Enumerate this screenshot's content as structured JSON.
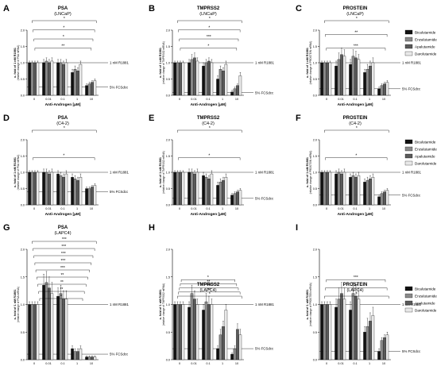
{
  "legend": {
    "entries": [
      {
        "name": "Bicalutamide",
        "color": "#111111"
      },
      {
        "name": "Enzalutamide",
        "color": "#8a8a8a"
      },
      {
        "name": "Apalutamide",
        "color": "#5a5a5a"
      },
      {
        "name": "Darolutamide",
        "color": "#e8e8e8"
      }
    ]
  },
  "chart_data": [
    {
      "letter": "A",
      "type": "bar",
      "title": "PSA",
      "subtitle": "(LNCaP)",
      "xlabel": "Anti-Androgen [µM]",
      "ylabel": "x- fold of 1 nM R1881",
      "ylabel2": "(relative change of PSA mRNA)",
      "categories": [
        "0",
        "0.01",
        "0.1",
        "1",
        "10"
      ],
      "ylim": [
        0,
        2.0
      ],
      "yticks": [
        "0.0",
        "0.5",
        "1.0",
        "1.5",
        "2.0"
      ],
      "ref_lines": [
        {
          "y": 1.0,
          "label": "1 nM R1881"
        },
        {
          "y": 0.25,
          "label": "5% FCSdcc"
        }
      ],
      "series": [
        {
          "name": "Bicalutamide",
          "values": [
            1.0,
            1.0,
            1.0,
            0.7,
            0.3
          ],
          "err": [
            0.05,
            0.1,
            0.1,
            0.1,
            0.05
          ]
        },
        {
          "name": "Enzalutamide",
          "values": [
            1.0,
            1.05,
            1.0,
            0.8,
            0.35
          ],
          "err": [
            0.05,
            0.1,
            0.1,
            0.1,
            0.05
          ]
        },
        {
          "name": "Apalutamide",
          "values": [
            1.0,
            1.0,
            0.95,
            0.75,
            0.4
          ],
          "err": [
            0.05,
            0.1,
            0.1,
            0.1,
            0.05
          ]
        },
        {
          "name": "Darolutamide",
          "values": [
            1.0,
            1.05,
            1.0,
            0.95,
            0.45
          ],
          "err": [
            0.05,
            0.1,
            0.1,
            0.1,
            0.05
          ]
        }
      ],
      "brackets": [
        "*",
        "*",
        "*",
        "**"
      ]
    },
    {
      "letter": "B",
      "type": "bar",
      "title": "TMPRSS2",
      "subtitle": "(LNCaP)",
      "xlabel": "Anti-Androgen [µM]",
      "ylabel": "x- fold of 1 nM R1881",
      "ylabel2": "(relative change of TMPRSS2 mRNA)",
      "categories": [
        "0",
        "0.01",
        "0.1",
        "1",
        "10"
      ],
      "ylim": [
        0,
        2.0
      ],
      "yticks": [
        "0.0",
        "0.5",
        "1.0",
        "1.5",
        "2.0"
      ],
      "ref_lines": [
        {
          "y": 1.0,
          "label": "1 nM R1881"
        },
        {
          "y": 0.08,
          "label": "5% FCSdcc"
        }
      ],
      "series": [
        {
          "name": "Bicalutamide",
          "values": [
            1.0,
            1.0,
            0.9,
            0.5,
            0.1
          ],
          "err": [
            0.05,
            0.1,
            0.1,
            0.1,
            0.05
          ]
        },
        {
          "name": "Enzalutamide",
          "values": [
            1.0,
            1.1,
            1.0,
            0.8,
            0.2
          ],
          "err": [
            0.05,
            0.15,
            0.1,
            0.1,
            0.05
          ]
        },
        {
          "name": "Apalutamide",
          "values": [
            1.0,
            1.15,
            1.05,
            0.75,
            0.3
          ],
          "err": [
            0.05,
            0.15,
            0.1,
            0.1,
            0.05
          ]
        },
        {
          "name": "Darolutamide",
          "values": [
            1.0,
            1.05,
            1.0,
            0.95,
            0.6
          ],
          "err": [
            0.05,
            0.1,
            0.1,
            0.1,
            0.1
          ]
        }
      ],
      "brackets": [
        "*",
        "*",
        "***",
        "*"
      ]
    },
    {
      "letter": "C",
      "type": "bar",
      "title": "PROSTEIN",
      "subtitle": "(LNCaP)",
      "xlabel": "Anti-Androgen [µM]",
      "ylabel": "x- fold of 1 nM R1881",
      "ylabel2": "(relative change of PROSTEIN mRNA)",
      "categories": [
        "0",
        "0.01",
        "0.1",
        "1",
        "10"
      ],
      "ylim": [
        0,
        2.0
      ],
      "yticks": [
        "0.0",
        "0.5",
        "1.0",
        "1.5",
        "2.0"
      ],
      "ref_lines": [
        {
          "y": 1.0,
          "label": "1 nM R1881"
        },
        {
          "y": 0.2,
          "label": "5% FCSdcc"
        }
      ],
      "series": [
        {
          "name": "Bicalutamide",
          "values": [
            1.0,
            0.9,
            0.95,
            0.7,
            0.2
          ],
          "err": [
            0.05,
            0.15,
            0.15,
            0.1,
            0.05
          ]
        },
        {
          "name": "Enzalutamide",
          "values": [
            1.0,
            1.1,
            1.2,
            0.8,
            0.3
          ],
          "err": [
            0.05,
            0.2,
            0.2,
            0.15,
            0.05
          ]
        },
        {
          "name": "Apalutamide",
          "values": [
            1.0,
            1.25,
            1.15,
            0.9,
            0.35
          ],
          "err": [
            0.05,
            0.2,
            0.2,
            0.15,
            0.05
          ]
        },
        {
          "name": "Darolutamide",
          "values": [
            1.0,
            1.2,
            1.1,
            1.0,
            0.4
          ],
          "err": [
            0.05,
            0.2,
            0.15,
            0.15,
            0.05
          ]
        }
      ],
      "brackets": [
        "*",
        "**",
        "***"
      ]
    },
    {
      "letter": "D",
      "type": "bar",
      "title": "PSA",
      "subtitle": "(C4-2)",
      "xlabel": "Anti-Androgen [µM]",
      "ylabel": "x- fold of 1 nM R1881",
      "ylabel2": "(relative change of PSA mRNA)",
      "categories": [
        "0",
        "0.01",
        "0.1",
        "1",
        "10"
      ],
      "ylim": [
        0,
        2.0
      ],
      "yticks": [
        "0.0",
        "0.5",
        "1.0",
        "1.5",
        "2.0"
      ],
      "ref_lines": [
        {
          "y": 1.0,
          "label": "1 nM R1881"
        },
        {
          "y": 0.4,
          "label": "5% FCSdcc"
        }
      ],
      "series": [
        {
          "name": "Bicalutamide",
          "values": [
            1.0,
            1.0,
            0.95,
            0.85,
            0.5
          ],
          "err": [
            0.05,
            0.1,
            0.1,
            0.1,
            0.05
          ]
        },
        {
          "name": "Enzalutamide",
          "values": [
            1.0,
            1.0,
            0.9,
            0.8,
            0.5
          ],
          "err": [
            0.05,
            0.1,
            0.1,
            0.1,
            0.05
          ]
        },
        {
          "name": "Apalutamide",
          "values": [
            1.0,
            0.95,
            0.85,
            0.75,
            0.55
          ],
          "err": [
            0.05,
            0.1,
            0.1,
            0.1,
            0.05
          ]
        },
        {
          "name": "Darolutamide",
          "values": [
            1.0,
            1.0,
            0.95,
            0.85,
            0.6
          ],
          "err": [
            0.05,
            0.1,
            0.1,
            0.1,
            0.05
          ]
        }
      ],
      "brackets": [
        "*",
        "*"
      ]
    },
    {
      "letter": "E",
      "type": "bar",
      "title": "TMPRSS2",
      "subtitle": "(C4-2)",
      "xlabel": "Anti-Androgen [µM]",
      "ylabel": "x- fold of 1 nM R1881",
      "ylabel2": "(relative change of TMPRSS2 mRNA)",
      "categories": [
        "0",
        "0.01",
        "0.1",
        "1",
        "10"
      ],
      "ylim": [
        0,
        2.0
      ],
      "yticks": [
        "0.0",
        "0.5",
        "1.0",
        "1.5",
        "2.0"
      ],
      "ref_lines": [
        {
          "y": 1.0,
          "label": "1 nM R1881"
        },
        {
          "y": 0.2,
          "label": "5% FCSdcc"
        }
      ],
      "series": [
        {
          "name": "Bicalutamide",
          "values": [
            1.0,
            1.0,
            0.9,
            0.6,
            0.3
          ],
          "err": [
            0.05,
            0.1,
            0.1,
            0.1,
            0.05
          ]
        },
        {
          "name": "Enzalutamide",
          "values": [
            1.0,
            1.0,
            0.85,
            0.7,
            0.35
          ],
          "err": [
            0.05,
            0.1,
            0.1,
            0.1,
            0.05
          ]
        },
        {
          "name": "Apalutamide",
          "values": [
            1.0,
            0.95,
            0.8,
            0.75,
            0.4
          ],
          "err": [
            0.05,
            0.1,
            0.1,
            0.1,
            0.05
          ]
        },
        {
          "name": "Darolutamide",
          "values": [
            1.0,
            1.0,
            0.95,
            0.85,
            0.45
          ],
          "err": [
            0.05,
            0.1,
            0.1,
            0.1,
            0.05
          ]
        }
      ],
      "brackets": [
        "*",
        "*"
      ]
    },
    {
      "letter": "F",
      "type": "bar",
      "title": "PROSTEIN",
      "subtitle": "(C4-2)",
      "xlabel": "Anti-Androgen [µM]",
      "ylabel": "x- fold of 1 nM R1881",
      "ylabel2": "(relative change of PROSTEIN mRNA)",
      "categories": [
        "0",
        "0.01",
        "0.1",
        "1",
        "10"
      ],
      "ylim": [
        0,
        2.0
      ],
      "yticks": [
        "0.0",
        "0.5",
        "1.0",
        "1.5",
        "2.0"
      ],
      "ref_lines": [
        {
          "y": 1.0,
          "label": "1 nM R1881"
        },
        {
          "y": 0.3,
          "label": "5% FCSdcc"
        }
      ],
      "series": [
        {
          "name": "Bicalutamide",
          "values": [
            1.0,
            0.95,
            0.85,
            0.7,
            0.25
          ],
          "err": [
            0.05,
            0.1,
            0.1,
            0.1,
            0.05
          ]
        },
        {
          "name": "Enzalutamide",
          "values": [
            1.0,
            1.0,
            0.9,
            0.75,
            0.35
          ],
          "err": [
            0.05,
            0.1,
            0.1,
            0.1,
            0.05
          ]
        },
        {
          "name": "Apalutamide",
          "values": [
            1.0,
            0.95,
            0.85,
            0.8,
            0.4
          ],
          "err": [
            0.05,
            0.1,
            0.1,
            0.1,
            0.05
          ]
        },
        {
          "name": "Darolutamide",
          "values": [
            1.0,
            1.0,
            0.9,
            0.85,
            0.45
          ],
          "err": [
            0.05,
            0.1,
            0.1,
            0.1,
            0.05
          ]
        }
      ],
      "brackets": [
        "*",
        "*"
      ]
    },
    {
      "letter": "G",
      "type": "bar",
      "title": "PSA",
      "subtitle": "(LAPC4)",
      "xlabel": "Anti-Androgen [µM]",
      "ylabel": "x- fold of 1 nM R1881",
      "ylabel2": "(relative change of PSA mRNA)",
      "categories": [
        "0",
        "0.01",
        "0.1",
        "1",
        "10"
      ],
      "ylim": [
        0,
        2.0
      ],
      "yticks": [
        "0.0",
        "0.5",
        "1.0",
        "1.5",
        "2.0"
      ],
      "ref_lines": [
        {
          "y": 1.0,
          "label": "1 nM R1881"
        },
        {
          "y": 0.1,
          "label": "5% FCSdcc"
        }
      ],
      "series": [
        {
          "name": "Bicalutamide",
          "values": [
            1.0,
            1.35,
            1.15,
            0.2,
            0.05
          ],
          "err": [
            0.05,
            0.2,
            0.15,
            0.05,
            0.02
          ]
        },
        {
          "name": "Enzalutamide",
          "values": [
            1.0,
            1.4,
            1.2,
            0.15,
            0.05
          ],
          "err": [
            0.05,
            0.2,
            0.15,
            0.05,
            0.02
          ]
        },
        {
          "name": "Apalutamide",
          "values": [
            1.0,
            1.3,
            1.1,
            0.15,
            0.05
          ],
          "err": [
            0.05,
            0.2,
            0.15,
            0.05,
            0.02
          ]
        },
        {
          "name": "Darolutamide",
          "values": [
            1.0,
            1.2,
            1.1,
            0.2,
            0.05
          ],
          "err": [
            0.05,
            0.2,
            0.15,
            0.05,
            0.02
          ]
        }
      ],
      "brackets": [
        "***",
        "***",
        "***",
        "***",
        "***",
        "**",
        "**",
        "**",
        "*"
      ]
    },
    {
      "letter": "H",
      "type": "bar",
      "title": "TMPRSS2",
      "subtitle": "(LAPC4)",
      "xlabel": "Anti-Androgen [µM]",
      "ylabel": "x- fold of 1 nM R1881",
      "ylabel2": "(relative change of TMPRSS2 mRNA)",
      "categories": [
        "0",
        "0.01",
        "0.1",
        "1",
        "10"
      ],
      "ylim": [
        0,
        2.0
      ],
      "yticks": [
        "0.0",
        "0.5",
        "1.0",
        "1.5",
        "2.0"
      ],
      "ref_lines": [
        {
          "y": 1.0,
          "label": "1 nM R1881"
        },
        {
          "y": 0.2,
          "label": "5% FCSdcc"
        }
      ],
      "series": [
        {
          "name": "Bicalutamide",
          "values": [
            1.0,
            0.95,
            0.9,
            0.2,
            0.1
          ],
          "err": [
            0.05,
            0.1,
            0.1,
            0.05,
            0.02
          ]
        },
        {
          "name": "Enzalutamide",
          "values": [
            1.0,
            1.2,
            1.05,
            0.45,
            0.2
          ],
          "err": [
            0.05,
            0.15,
            0.15,
            0.1,
            0.05
          ]
        },
        {
          "name": "Apalutamide",
          "values": [
            1.0,
            1.1,
            1.0,
            0.6,
            0.55
          ],
          "err": [
            0.05,
            0.15,
            0.15,
            0.1,
            0.1
          ]
        },
        {
          "name": "Darolutamide",
          "values": [
            1.0,
            1.0,
            1.0,
            0.9,
            0.45
          ],
          "err": [
            0.05,
            0.1,
            0.1,
            0.1,
            0.1
          ]
        }
      ],
      "brackets": [
        "*",
        "**",
        "***",
        "**",
        "*"
      ]
    },
    {
      "letter": "I",
      "type": "bar",
      "title": "PROSTEIN",
      "subtitle": "(LAPC4)",
      "xlabel": "Anti-Androgen [µM]",
      "ylabel": "x- fold of 1 nM R1881",
      "ylabel2": "(relative change of PROSTEIN mRNA)",
      "categories": [
        "0",
        "0.01",
        "0.1",
        "1",
        "10"
      ],
      "ylim": [
        0,
        2.0
      ],
      "yticks": [
        "0.0",
        "0.5",
        "1.0",
        "1.5",
        "2.0"
      ],
      "ref_lines": [
        {
          "y": 1.0,
          "label": "1 nM R1881"
        },
        {
          "y": 0.15,
          "label": "5% FCSdcc"
        }
      ],
      "series": [
        {
          "name": "Bicalutamide",
          "values": [
            1.0,
            0.95,
            0.9,
            0.5,
            0.15
          ],
          "err": [
            0.05,
            0.15,
            0.15,
            0.1,
            0.05
          ]
        },
        {
          "name": "Enzalutamide",
          "values": [
            1.0,
            1.1,
            1.2,
            0.6,
            0.35
          ],
          "err": [
            0.05,
            0.2,
            0.2,
            0.15,
            0.05
          ]
        },
        {
          "name": "Apalutamide",
          "values": [
            1.0,
            1.2,
            1.15,
            0.7,
            0.4
          ],
          "err": [
            0.05,
            0.2,
            0.2,
            0.15,
            0.05
          ]
        },
        {
          "name": "Darolutamide",
          "values": [
            1.0,
            1.1,
            1.1,
            0.8,
            0.45
          ],
          "err": [
            0.05,
            0.2,
            0.2,
            0.15,
            0.05
          ]
        }
      ],
      "brackets": [
        "*",
        "**",
        "***"
      ]
    }
  ]
}
